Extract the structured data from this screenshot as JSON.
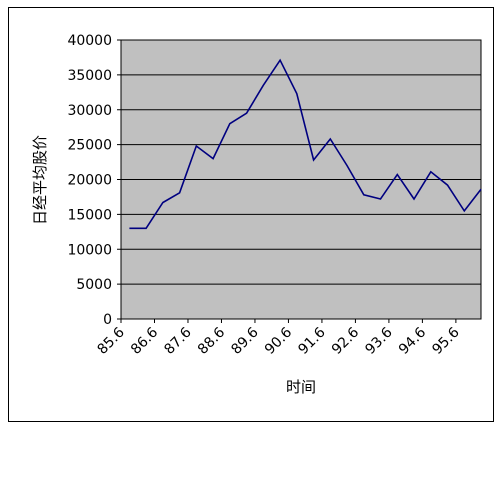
{
  "chart_data": {
    "type": "line",
    "title": "",
    "xlabel": "时间",
    "ylabel": "日经平均股价",
    "x_ticks": [
      "85.6",
      "86.6",
      "87.6",
      "88.6",
      "89.6",
      "90.6",
      "91.6",
      "92.6",
      "93.6",
      "94.6",
      "95.6"
    ],
    "y_ticks": [
      "0",
      "5000",
      "10000",
      "15000",
      "20000",
      "25000",
      "30000",
      "35000",
      "40000"
    ],
    "ylim": [
      0,
      40000
    ],
    "grid": true,
    "legend": "none",
    "series": [
      {
        "values": [
          13000,
          13000,
          16700,
          18100,
          24800,
          23000,
          28000,
          29500,
          33500,
          37100,
          32300,
          22800,
          25800,
          22000,
          17800,
          17200,
          20700,
          17200,
          21100,
          19200,
          15500,
          18600
        ]
      }
    ],
    "colors": {
      "plot_background": "#c0c0c0",
      "line": "#000080",
      "gridline": "#000000"
    }
  }
}
